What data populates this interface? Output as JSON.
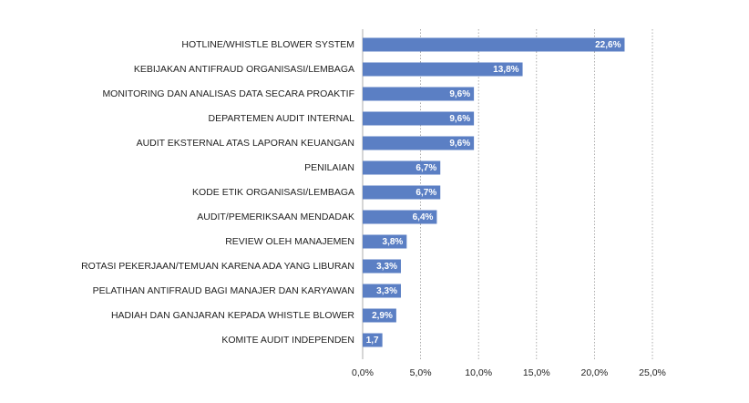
{
  "chart_data": {
    "type": "bar",
    "orientation": "horizontal",
    "categories": [
      "HOTLINE/WHISTLE BLOWER SYSTEM",
      "KEBIJAKAN ANTIFRAUD ORGANISASI/LEMBAGA",
      "MONITORING DAN ANALISAS DATA SECARA PROAKTIF",
      "DEPARTEMEN AUDIT INTERNAL",
      "AUDIT EKSTERNAL ATAS LAPORAN KEUANGAN",
      "PENILAIAN",
      "KODE ETIK ORGANISASI/LEMBAGA",
      "AUDIT/PEMERIKSAAN MENDADAK",
      "REVIEW OLEH MANAJEMEN",
      "ROTASI PEKERJAAN/TEMUAN KARENA ADA YANG LIBURAN",
      "PELATIHAN ANTIFRAUD BAGI MANAJER DAN KARYAWAN",
      "HADIAH DAN GANJARAN KEPADA WHISTLE BLOWER",
      "KOMITE AUDIT INDEPENDEN"
    ],
    "values": [
      22.6,
      13.8,
      9.6,
      9.6,
      9.6,
      6.7,
      6.7,
      6.4,
      3.8,
      3.3,
      3.3,
      2.9,
      1.7
    ],
    "value_labels": [
      "22,6%",
      "13,8%",
      "9,6%",
      "9,6%",
      "9,6%",
      "6,7%",
      "6,7%",
      "6,4%",
      "3,8%",
      "3,3%",
      "3,3%",
      "2,9%",
      "1,7"
    ],
    "xticks": [
      0,
      5,
      10,
      15,
      20,
      25
    ],
    "xtick_labels": [
      "0,0%",
      "5,0%",
      "10,0%",
      "15,0%",
      "20,0%",
      "25,0%"
    ],
    "xlim": [
      0,
      25
    ],
    "grid": true,
    "bar_color": "#5b7fc4",
    "title": "",
    "xlabel": "",
    "ylabel": ""
  }
}
